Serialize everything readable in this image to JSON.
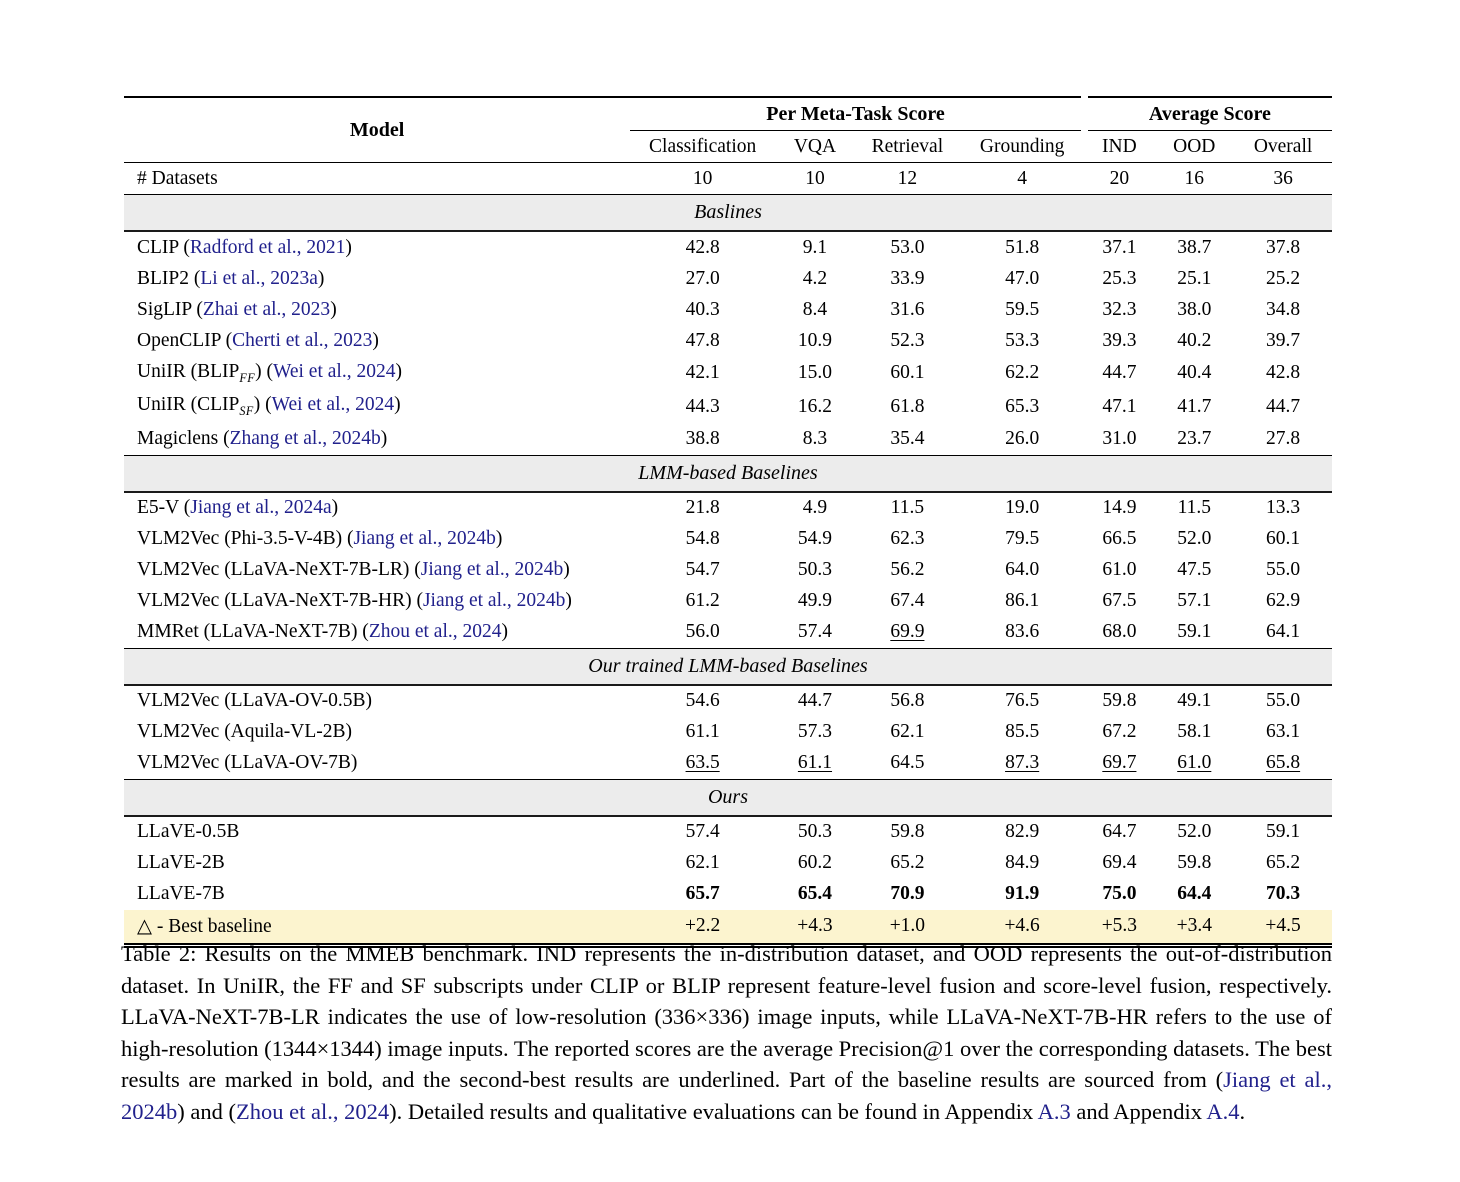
{
  "colors": {
    "link": "#21218C",
    "band_bg": "#ececec",
    "highlight_bg": "#fcf4cf"
  },
  "table": {
    "header": {
      "model_label": "Model",
      "spanners": [
        {
          "label": "Per Meta-Task Score",
          "span": 4
        },
        {
          "label": "Average Score",
          "span": 3
        }
      ],
      "columns": [
        "Classification",
        "VQA",
        "Retrieval",
        "Grounding",
        "IND",
        "OOD",
        "Overall"
      ]
    },
    "datasets_row": {
      "label": "# Datasets",
      "values": [
        "10",
        "10",
        "12",
        "4",
        "20",
        "16",
        "36"
      ]
    },
    "sections": [
      {
        "title": "Baslines",
        "rows": [
          {
            "model": [
              {
                "t": "CLIP ("
              },
              {
                "t": "Radford et al., 2021",
                "link": true
              },
              {
                "t": ")"
              }
            ],
            "values": [
              {
                "t": "42.8"
              },
              {
                "t": "9.1"
              },
              {
                "t": "53.0"
              },
              {
                "t": "51.8"
              },
              {
                "t": "37.1"
              },
              {
                "t": "38.7"
              },
              {
                "t": "37.8"
              }
            ]
          },
          {
            "model": [
              {
                "t": "BLIP2 ("
              },
              {
                "t": "Li et al., 2023a",
                "link": true
              },
              {
                "t": ")"
              }
            ],
            "values": [
              {
                "t": "27.0"
              },
              {
                "t": "4.2"
              },
              {
                "t": "33.9"
              },
              {
                "t": "47.0"
              },
              {
                "t": "25.3"
              },
              {
                "t": "25.1"
              },
              {
                "t": "25.2"
              }
            ]
          },
          {
            "model": [
              {
                "t": "SigLIP ("
              },
              {
                "t": "Zhai et al., 2023",
                "link": true
              },
              {
                "t": ")"
              }
            ],
            "values": [
              {
                "t": "40.3"
              },
              {
                "t": "8.4"
              },
              {
                "t": "31.6"
              },
              {
                "t": "59.5"
              },
              {
                "t": "32.3"
              },
              {
                "t": "38.0"
              },
              {
                "t": "34.8"
              }
            ]
          },
          {
            "model": [
              {
                "t": "OpenCLIP ("
              },
              {
                "t": "Cherti et al., 2023",
                "link": true
              },
              {
                "t": ")"
              }
            ],
            "values": [
              {
                "t": "47.8"
              },
              {
                "t": "10.9"
              },
              {
                "t": "52.3"
              },
              {
                "t": "53.3"
              },
              {
                "t": "39.3"
              },
              {
                "t": "40.2"
              },
              {
                "t": "39.7"
              }
            ]
          },
          {
            "model": [
              {
                "t": "UniIR (BLIP"
              },
              {
                "t": "FF",
                "sub": true
              },
              {
                "t": ") ("
              },
              {
                "t": "Wei et al., 2024",
                "link": true
              },
              {
                "t": ")"
              }
            ],
            "values": [
              {
                "t": "42.1"
              },
              {
                "t": "15.0"
              },
              {
                "t": "60.1"
              },
              {
                "t": "62.2"
              },
              {
                "t": "44.7"
              },
              {
                "t": "40.4"
              },
              {
                "t": "42.8"
              }
            ]
          },
          {
            "model": [
              {
                "t": "UniIR (CLIP"
              },
              {
                "t": "SF",
                "sub": true
              },
              {
                "t": ") ("
              },
              {
                "t": "Wei et al., 2024",
                "link": true
              },
              {
                "t": ")"
              }
            ],
            "values": [
              {
                "t": "44.3"
              },
              {
                "t": "16.2"
              },
              {
                "t": "61.8"
              },
              {
                "t": "65.3"
              },
              {
                "t": "47.1"
              },
              {
                "t": "41.7"
              },
              {
                "t": "44.7"
              }
            ]
          },
          {
            "model": [
              {
                "t": "Magiclens ("
              },
              {
                "t": "Zhang et al., 2024b",
                "link": true
              },
              {
                "t": ")"
              }
            ],
            "values": [
              {
                "t": "38.8"
              },
              {
                "t": "8.3"
              },
              {
                "t": "35.4"
              },
              {
                "t": "26.0"
              },
              {
                "t": "31.0"
              },
              {
                "t": "23.7"
              },
              {
                "t": "27.8"
              }
            ]
          }
        ]
      },
      {
        "title": "LMM-based Baselines",
        "rows": [
          {
            "model": [
              {
                "t": "E5-V ("
              },
              {
                "t": "Jiang et al., 2024a",
                "link": true
              },
              {
                "t": ")"
              }
            ],
            "values": [
              {
                "t": "21.8"
              },
              {
                "t": "4.9"
              },
              {
                "t": "11.5"
              },
              {
                "t": "19.0"
              },
              {
                "t": "14.9"
              },
              {
                "t": "11.5"
              },
              {
                "t": "13.3"
              }
            ]
          },
          {
            "model": [
              {
                "t": "VLM2Vec (Phi-3.5-V-4B) ("
              },
              {
                "t": "Jiang et al., 2024b",
                "link": true
              },
              {
                "t": ")"
              }
            ],
            "values": [
              {
                "t": "54.8"
              },
              {
                "t": "54.9"
              },
              {
                "t": "62.3"
              },
              {
                "t": "79.5"
              },
              {
                "t": "66.5"
              },
              {
                "t": "52.0"
              },
              {
                "t": "60.1"
              }
            ]
          },
          {
            "model": [
              {
                "t": "VLM2Vec (LLaVA-NeXT-7B-LR) ("
              },
              {
                "t": "Jiang et al., 2024b",
                "link": true
              },
              {
                "t": ")"
              }
            ],
            "values": [
              {
                "t": "54.7"
              },
              {
                "t": "50.3"
              },
              {
                "t": "56.2"
              },
              {
                "t": "64.0"
              },
              {
                "t": "61.0"
              },
              {
                "t": "47.5"
              },
              {
                "t": "55.0"
              }
            ]
          },
          {
            "model": [
              {
                "t": "VLM2Vec (LLaVA-NeXT-7B-HR) ("
              },
              {
                "t": "Jiang et al., 2024b",
                "link": true
              },
              {
                "t": ")"
              }
            ],
            "values": [
              {
                "t": "61.2"
              },
              {
                "t": "49.9"
              },
              {
                "t": "67.4"
              },
              {
                "t": "86.1"
              },
              {
                "t": "67.5"
              },
              {
                "t": "57.1"
              },
              {
                "t": "62.9"
              }
            ]
          },
          {
            "model": [
              {
                "t": "MMRet (LLaVA-NeXT-7B) ("
              },
              {
                "t": "Zhou et al., 2024",
                "link": true
              },
              {
                "t": ")"
              }
            ],
            "values": [
              {
                "t": "56.0"
              },
              {
                "t": "57.4"
              },
              {
                "t": "69.9",
                "u": true
              },
              {
                "t": "83.6"
              },
              {
                "t": "68.0"
              },
              {
                "t": "59.1"
              },
              {
                "t": "64.1"
              }
            ]
          }
        ]
      },
      {
        "title": "Our trained LMM-based Baselines",
        "rows": [
          {
            "model": [
              {
                "t": "VLM2Vec (LLaVA-OV-0.5B)"
              }
            ],
            "values": [
              {
                "t": "54.6"
              },
              {
                "t": "44.7"
              },
              {
                "t": "56.8"
              },
              {
                "t": "76.5"
              },
              {
                "t": "59.8"
              },
              {
                "t": "49.1"
              },
              {
                "t": "55.0"
              }
            ]
          },
          {
            "model": [
              {
                "t": "VLM2Vec (Aquila-VL-2B)"
              }
            ],
            "values": [
              {
                "t": "61.1"
              },
              {
                "t": "57.3"
              },
              {
                "t": "62.1"
              },
              {
                "t": "85.5"
              },
              {
                "t": "67.2"
              },
              {
                "t": "58.1"
              },
              {
                "t": "63.1"
              }
            ]
          },
          {
            "model": [
              {
                "t": "VLM2Vec (LLaVA-OV-7B)"
              }
            ],
            "values": [
              {
                "t": "63.5",
                "u": true
              },
              {
                "t": "61.1",
                "u": true
              },
              {
                "t": "64.5"
              },
              {
                "t": "87.3",
                "u": true
              },
              {
                "t": "69.7",
                "u": true
              },
              {
                "t": "61.0",
                "u": true
              },
              {
                "t": "65.8",
                "u": true
              }
            ]
          }
        ]
      },
      {
        "title": "Ours",
        "rows": [
          {
            "model": [
              {
                "t": "LLaVE-0.5B"
              }
            ],
            "values": [
              {
                "t": "57.4"
              },
              {
                "t": "50.3"
              },
              {
                "t": "59.8"
              },
              {
                "t": "82.9"
              },
              {
                "t": "64.7"
              },
              {
                "t": "52.0"
              },
              {
                "t": "59.1"
              }
            ]
          },
          {
            "model": [
              {
                "t": "LLaVE-2B"
              }
            ],
            "values": [
              {
                "t": "62.1"
              },
              {
                "t": "60.2"
              },
              {
                "t": "65.2"
              },
              {
                "t": "84.9"
              },
              {
                "t": "69.4"
              },
              {
                "t": "59.8"
              },
              {
                "t": "65.2"
              }
            ]
          },
          {
            "model": [
              {
                "t": "LLaVE-7B"
              }
            ],
            "values": [
              {
                "t": "65.7",
                "b": true
              },
              {
                "t": "65.4",
                "b": true
              },
              {
                "t": "70.9",
                "b": true
              },
              {
                "t": "91.9",
                "b": true
              },
              {
                "t": "75.0",
                "b": true
              },
              {
                "t": "64.4",
                "b": true
              },
              {
                "t": "70.3",
                "b": true
              }
            ]
          },
          {
            "model": [
              {
                "t": "△ - Best baseline"
              }
            ],
            "highlight": true,
            "values": [
              {
                "t": "+2.2"
              },
              {
                "t": "+4.3"
              },
              {
                "t": "+1.0"
              },
              {
                "t": "+4.6"
              },
              {
                "t": "+5.3"
              },
              {
                "t": "+3.4"
              },
              {
                "t": "+4.5"
              }
            ]
          }
        ]
      }
    ]
  },
  "caption": {
    "parts": [
      {
        "t": "Table 2: Results on the MMEB benchmark. IND represents the in-distribution dataset, and OOD represents the out-of-distribution dataset. In UniIR, the FF and SF subscripts under CLIP or BLIP represent feature-level fusion and score-level fusion, respectively. LLaVA-NeXT-7B-LR indicates the use of low-resolution (336×336) image inputs, while LLaVA-NeXT-7B-HR refers to the use of high-resolution (1344×1344) image inputs. The reported scores are the average Precision@1 over the corresponding datasets. The best results are marked in bold, and the second-best results are underlined. Part of the baseline results are sourced from ("
      },
      {
        "t": "Jiang et al., 2024b",
        "link": true
      },
      {
        "t": ") and ("
      },
      {
        "t": "Zhou et al., 2024",
        "link": true
      },
      {
        "t": "). Detailed results and qualitative evaluations can be found in Appendix "
      },
      {
        "t": "A.3",
        "link": true
      },
      {
        "t": " and Appendix "
      },
      {
        "t": "A.4",
        "link": true
      },
      {
        "t": "."
      }
    ]
  }
}
